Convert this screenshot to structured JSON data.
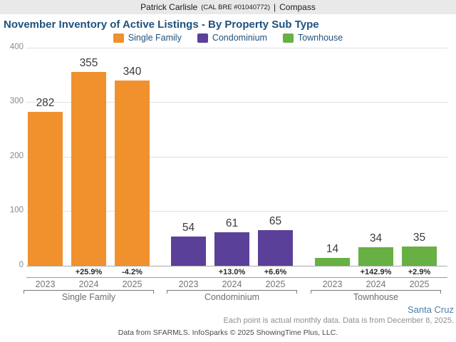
{
  "header": {
    "agent": "Patrick Carlisle",
    "license": "(CAL BRE #01040772)",
    "separator": "|",
    "brand": "Compass"
  },
  "title": "November Inventory of Active Listings - By Property Sub Type",
  "chart_data": {
    "type": "bar",
    "title": "November Inventory of Active Listings - By Property Sub Type",
    "categories": [
      "2023",
      "2024",
      "2025"
    ],
    "groups": [
      {
        "name": "Single Family",
        "color": "#F0912D",
        "values": [
          282,
          355,
          340
        ],
        "pct_change": [
          "",
          "+25.9%",
          "-4.2%"
        ]
      },
      {
        "name": "Condominium",
        "color": "#5B4099",
        "values": [
          54,
          61,
          65
        ],
        "pct_change": [
          "",
          "+13.0%",
          "+6.6%"
        ]
      },
      {
        "name": "Townhouse",
        "color": "#68B043",
        "values": [
          14,
          34,
          35
        ],
        "pct_change": [
          "",
          "+142.9%",
          "+2.9%"
        ]
      }
    ],
    "ylim": [
      0,
      400
    ],
    "yticks": [
      0,
      100,
      200,
      300,
      400
    ],
    "xlabel": "",
    "ylabel": "",
    "grid": true,
    "legend_position": "top"
  },
  "footer": {
    "region": "Santa Cruz",
    "note": "Each point is actual monthly data. Data is from December 8, 2025.",
    "credit": "Data from SFARMLS. InfoSparks © 2025 ShowingTime Plus, LLC."
  }
}
